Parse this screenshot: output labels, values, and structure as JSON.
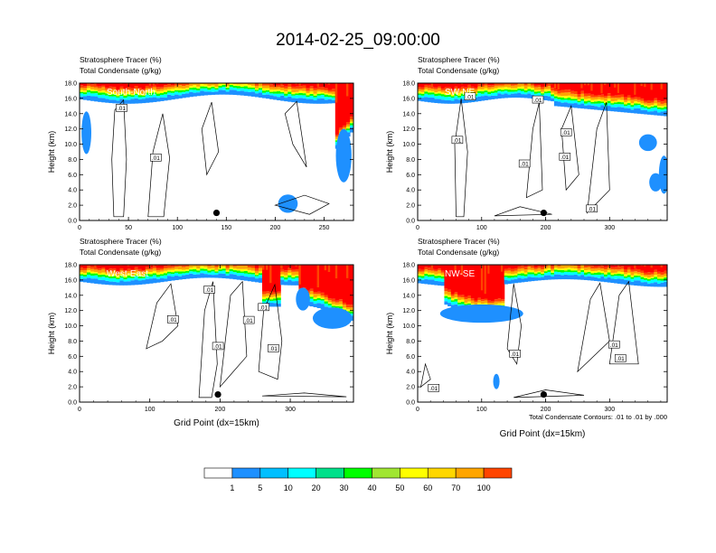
{
  "title": "2014-02-25_09:00:00",
  "contour_note": "Total Condensate Contours: .01 to .01 by .000",
  "colorbar": {
    "labels": [
      "1",
      "5",
      "10",
      "20",
      "30",
      "40",
      "50",
      "60",
      "70",
      "100"
    ],
    "colors": [
      "#ffffff",
      "#1e90ff",
      "#00bfff",
      "#00ffff",
      "#00e08a",
      "#00ff00",
      "#a0e632",
      "#ffff00",
      "#ffd700",
      "#ffa500",
      "#ff4500",
      "#ff0000"
    ]
  },
  "chart_data": [
    {
      "type": "heatmap",
      "panel": "South-North",
      "subtitle_lines": [
        "Stratosphere Tracer   (%)",
        "Total Condensate   (g/kg)"
      ],
      "ylabel": "Height (km)",
      "xlabel": "",
      "xlim": [
        0,
        280
      ],
      "ylim": [
        0,
        18
      ],
      "xticks": [
        0,
        50,
        100,
        150,
        200,
        250
      ],
      "yticks": [
        0,
        2,
        4,
        6,
        8,
        10,
        12,
        14,
        16,
        18
      ],
      "ytick_labels": [
        "0.0",
        "2.0",
        "4.0",
        "6.0",
        "8.0",
        "10.0",
        "12.0",
        "14.0",
        "16.0",
        "18.0"
      ],
      "contour_labels": [
        {
          "text": ".01",
          "x": 43,
          "y": 14.7
        },
        {
          "text": ".01",
          "x": 78,
          "y": 8.2
        }
      ],
      "marker": {
        "x": 140,
        "y": 1.0
      }
    },
    {
      "type": "heatmap",
      "panel": "SW-NE",
      "subtitle_lines": [
        "Stratosphere Tracer   (%)",
        "Total Condensate   (g/kg)"
      ],
      "ylabel": "Height (km)",
      "xlabel": "",
      "xlim": [
        0,
        390
      ],
      "ylim": [
        0,
        18
      ],
      "xticks": [
        0,
        100,
        200,
        300
      ],
      "yticks": [
        0,
        2,
        4,
        6,
        8,
        10,
        12,
        14,
        16,
        18
      ],
      "ytick_labels": [
        "0.0",
        "2.0",
        "4.0",
        "6.0",
        "8.0",
        "10.0",
        "12.0",
        "14.0",
        "16.0",
        "18.0"
      ],
      "contour_labels": [
        {
          "text": ".01",
          "x": 82,
          "y": 16.2
        },
        {
          "text": ".01",
          "x": 188,
          "y": 15.8
        },
        {
          "text": ".01",
          "x": 62,
          "y": 10.5
        },
        {
          "text": ".01",
          "x": 232,
          "y": 11.5
        },
        {
          "text": ".01",
          "x": 167,
          "y": 7.4
        },
        {
          "text": ".01",
          "x": 230,
          "y": 8.3
        },
        {
          "text": ".01",
          "x": 272,
          "y": 1.5
        }
      ],
      "marker": {
        "x": 197,
        "y": 1.0
      }
    },
    {
      "type": "heatmap",
      "panel": "West-East",
      "subtitle_lines": [
        "Stratosphere Tracer   (%)",
        "Total Condensate   (g/kg)"
      ],
      "ylabel": "Height (km)",
      "xlabel": "Grid Point (dx=15km)",
      "xlim": [
        0,
        390
      ],
      "ylim": [
        0,
        18
      ],
      "xticks": [
        0,
        100,
        200,
        300
      ],
      "yticks": [
        0,
        2,
        4,
        6,
        8,
        10,
        12,
        14,
        16,
        18
      ],
      "ytick_labels": [
        "0.0",
        "2.0",
        "4.0",
        "6.0",
        "8.0",
        "10.0",
        "12.0",
        "14.0",
        "16.0",
        "18.0"
      ],
      "contour_labels": [
        {
          "text": ".01",
          "x": 185,
          "y": 14.7
        },
        {
          "text": ".01",
          "x": 262,
          "y": 12.4
        },
        {
          "text": ".01",
          "x": 133,
          "y": 10.8
        },
        {
          "text": ".01",
          "x": 241,
          "y": 10.7
        },
        {
          "text": ".01",
          "x": 197,
          "y": 7.3
        },
        {
          "text": ".01",
          "x": 276,
          "y": 7.0
        }
      ],
      "marker": {
        "x": 197,
        "y": 1.0
      }
    },
    {
      "type": "heatmap",
      "panel": "NW-SE",
      "subtitle_lines": [
        "Stratosphere Tracer   (%)",
        "Total Condensate   (g/kg)"
      ],
      "ylabel": "Height (km)",
      "xlabel": "Grid Point (dx=15km)",
      "xlim": [
        0,
        390
      ],
      "ylim": [
        0,
        18
      ],
      "xticks": [
        0,
        100,
        200,
        300
      ],
      "yticks": [
        0,
        2,
        4,
        6,
        8,
        10,
        12,
        14,
        16,
        18
      ],
      "ytick_labels": [
        "0.0",
        "2.0",
        "4.0",
        "6.0",
        "8.0",
        "10.0",
        "12.0",
        "14.0",
        "16.0",
        "18.0"
      ],
      "contour_labels": [
        {
          "text": ".01",
          "x": 307,
          "y": 7.5
        },
        {
          "text": ".01",
          "x": 317,
          "y": 5.7
        },
        {
          "text": ".01",
          "x": 152,
          "y": 6.3
        },
        {
          "text": ".01",
          "x": 25,
          "y": 1.8
        }
      ],
      "marker": {
        "x": 197,
        "y": 1.0
      }
    }
  ]
}
